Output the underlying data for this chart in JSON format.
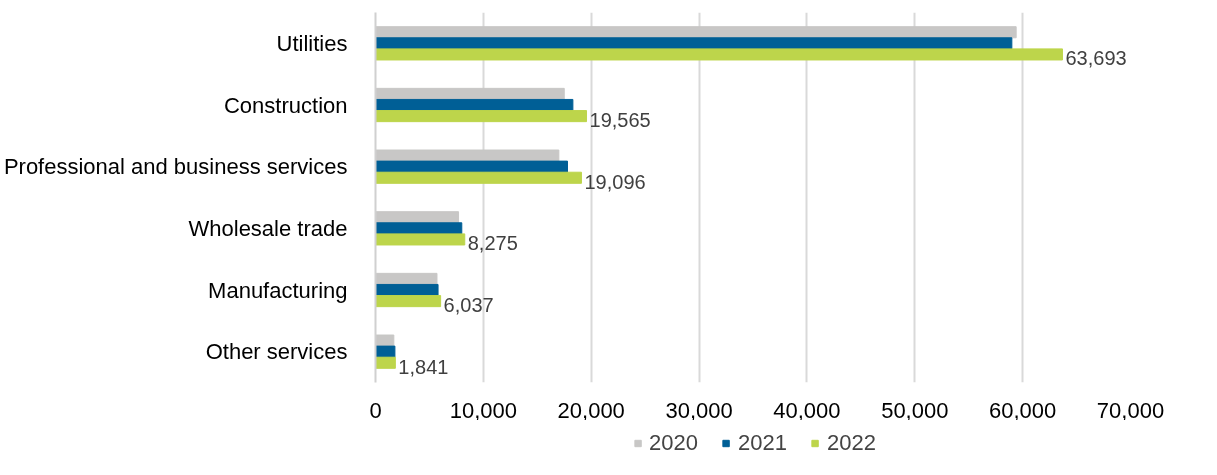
{
  "chart_data": {
    "type": "bar",
    "orientation": "horizontal",
    "categories": [
      "Utilities",
      "Construction",
      "Professional and business services",
      "Wholesale trade",
      "Manufacturing",
      "Other services"
    ],
    "series": [
      {
        "name": "2020",
        "color": "#c8c7c6",
        "values": [
          59400,
          17500,
          17000,
          7700,
          5700,
          1700
        ]
      },
      {
        "name": "2021",
        "color": "#005f96",
        "values": [
          59000,
          18300,
          17800,
          8000,
          5800,
          1800
        ]
      },
      {
        "name": "2022",
        "color": "#bdd54b",
        "values": [
          63693,
          19565,
          19096,
          8275,
          6037,
          1841
        ],
        "value_labels": [
          "63,693",
          "19,565",
          "19,096",
          "8,275",
          "6,037",
          "1,841"
        ]
      }
    ],
    "xlim": [
      0,
      70000
    ],
    "xticks": [
      0,
      {
        "value": 10000,
        "label": "10,000"
      },
      {
        "value": 20000,
        "label": "20,000"
      },
      {
        "value": 30000,
        "label": "30,000"
      },
      {
        "value": 40000,
        "label": "40,000"
      },
      {
        "value": 50000,
        "label": "50,000"
      },
      {
        "value": 60000,
        "label": "60,000"
      },
      {
        "value": 70000,
        "label": "70,000"
      }
    ],
    "grid": "x",
    "legend": "bottom"
  }
}
